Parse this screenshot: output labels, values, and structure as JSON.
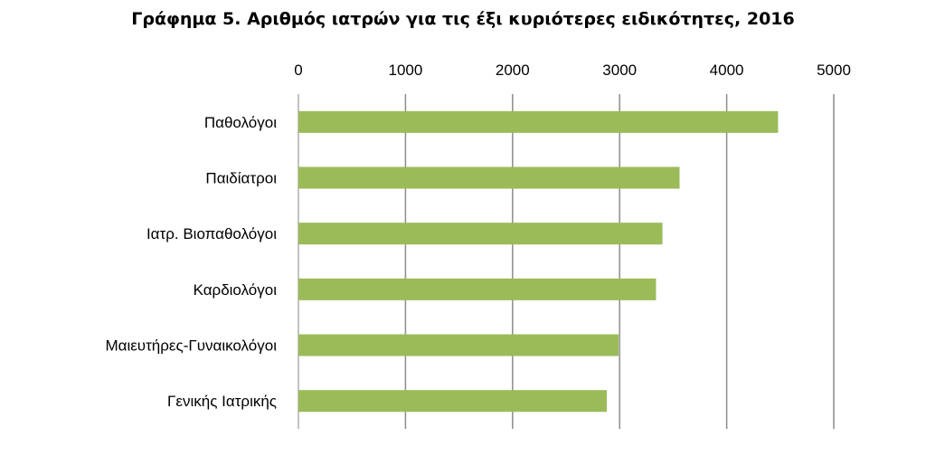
{
  "chart_data": {
    "type": "bar",
    "orientation": "horizontal",
    "title": "Γράφημα 5. Αριθμός ιατρών για τις έξι κυριότερες ειδικότητες, 2016",
    "xlabel": "",
    "ylabel": "",
    "categories": [
      "Παθολόγοι",
      "Παιδίατροι",
      "Ιατρ. Βιοπαθολόγοι",
      "Καρδιολόγοι",
      "Μαιευτήρες-Γυναικολόγοι",
      "Γενικής Ιατρικής"
    ],
    "values": [
      4480,
      3560,
      3400,
      3340,
      2990,
      2880
    ],
    "xlim": [
      0,
      5000
    ],
    "xticks": [
      "0",
      "1000",
      "2000",
      "3000",
      "4000",
      "5000"
    ],
    "value_axis_position": "top",
    "grid": true,
    "legend": "none",
    "bar_color": "#9bbb59"
  }
}
